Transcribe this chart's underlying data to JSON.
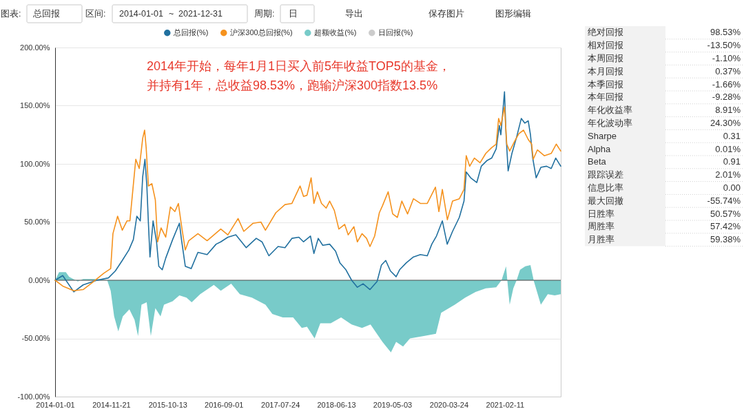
{
  "chart_data": [
    {
      "type": "other",
      "annotations": [
        "图表:",
        "总回报",
        "区间:",
        "2014-01-01",
        "~",
        "2021-12-31",
        "周期:",
        "日",
        "导出",
        "保存图片",
        "图形编辑"
      ]
    },
    {
      "type": "line",
      "legend": "top",
      "grid": "y",
      "xlim": [
        "2014-01-01",
        "2021-12-31"
      ],
      "xticks": [
        "2014-01-01",
        "2014-11-21",
        "2015-10-13",
        "2016-09-01",
        "2017-07-24",
        "2018-06-13",
        "2019-05-03",
        "2020-03-24",
        "2021-02-11"
      ],
      "ylim": [
        -100,
        200
      ],
      "yticks": [
        {
          "value": -100,
          "label": "-100.00%"
        },
        {
          "value": -50,
          "label": "-50.00%"
        },
        {
          "value": 0,
          "label": "0.00%"
        },
        {
          "value": 50,
          "label": "50.00%"
        },
        {
          "value": 100,
          "label": "100.00%"
        },
        {
          "value": 150,
          "label": "150.00%"
        },
        {
          "value": 200,
          "label": "200.00%"
        }
      ],
      "ref_lines": [
        {
          "axis": "y",
          "value": 0,
          "color": "#4d4d4d"
        }
      ],
      "annotations": [
        "2014年开始，每年1月1日买入前5年收益TOP5的基金，",
        "并持有1年，总收益98.53%，跑输沪深300指数13.5%"
      ],
      "series": [
        {
          "name": "总回报(%)",
          "color": "#21709f",
          "x": [
            "2014-01-01",
            "2014-02-14",
            "2014-04-19",
            "2014-06-12",
            "2014-08-30",
            "2014-11-05",
            "2014-12-15",
            "2015-01-24",
            "2015-03-03",
            "2015-03-29",
            "2015-04-18",
            "2015-05-08",
            "2015-05-22",
            "2015-06-04",
            "2015-06-15",
            "2015-06-24",
            "2015-07-03",
            "2015-07-21",
            "2015-08-10",
            "2015-08-23",
            "2015-09-12",
            "2015-10-02",
            "2015-11-11",
            "2015-12-20",
            "2016-01-01",
            "2016-01-23",
            "2016-02-26",
            "2016-04-05",
            "2016-05-28",
            "2016-07-19",
            "2016-08-15",
            "2016-09-25",
            "2016-11-10",
            "2016-12-13",
            "2017-01-09",
            "2017-03-08",
            "2017-04-10",
            "2017-05-20",
            "2017-07-12",
            "2017-08-21",
            "2017-09-30",
            "2017-11-09",
            "2017-12-06",
            "2018-01-15",
            "2018-02-04",
            "2018-03-01",
            "2018-03-27",
            "2018-05-06",
            "2018-06-09",
            "2018-07-04",
            "2018-08-08",
            "2018-09-10",
            "2018-10-13",
            "2018-11-15",
            "2018-12-25",
            "2019-02-04",
            "2019-03-01",
            "2019-03-26",
            "2019-04-22",
            "2019-05-25",
            "2019-06-14",
            "2019-07-23",
            "2019-09-02",
            "2019-10-12",
            "2019-11-21",
            "2019-12-17",
            "2020-01-13",
            "2020-02-16",
            "2020-03-15",
            "2020-04-15",
            "2020-05-24",
            "2020-06-20",
            "2020-07-03",
            "2020-07-29",
            "2020-09-02",
            "2020-09-28",
            "2020-11-01",
            "2020-11-27",
            "2020-12-23",
            "2021-01-10",
            "2021-01-19",
            "2021-02-09",
            "2021-02-18",
            "2021-03-02",
            "2021-03-24",
            "2021-04-20",
            "2021-05-17",
            "2021-06-06",
            "2021-06-26",
            "2021-07-09",
            "2021-07-22",
            "2021-08-11",
            "2021-09-07",
            "2021-10-10",
            "2021-11-06",
            "2021-12-02",
            "2021-12-31"
          ],
          "values": [
            0,
            4,
            -10,
            -4,
            0,
            2,
            8,
            17,
            26,
            35,
            55,
            51,
            89,
            104,
            81,
            49,
            20,
            51,
            33,
            12,
            9,
            19,
            35,
            49,
            35,
            12,
            10,
            24,
            22,
            31,
            33,
            37,
            39,
            33,
            28,
            36,
            33,
            21,
            29,
            28,
            36,
            37,
            33,
            38,
            23,
            36,
            30,
            31,
            25,
            15,
            9,
            0,
            -6,
            -3,
            -8,
            -1,
            13,
            17,
            8,
            3,
            9,
            15,
            20,
            22,
            21,
            31,
            38,
            51,
            31,
            42,
            54,
            68,
            93,
            88,
            84,
            98,
            103,
            105,
            113,
            133,
            125,
            162,
            125,
            94,
            109,
            123,
            139,
            135,
            137,
            125,
            105,
            88,
            97,
            98,
            96,
            105,
            98
          ]
        },
        {
          "name": "沪深300总回报(%)",
          "color": "#f5921e",
          "x": [
            "2014-01-01",
            "2014-02-14",
            "2014-04-19",
            "2014-06-12",
            "2014-08-04",
            "2014-10-09",
            "2014-11-18",
            "2014-12-01",
            "2014-12-28",
            "2015-01-24",
            "2015-02-20",
            "2015-03-09",
            "2015-04-12",
            "2015-05-02",
            "2015-05-22",
            "2015-06-02",
            "2015-06-11",
            "2015-06-24",
            "2015-07-14",
            "2015-08-03",
            "2015-08-16",
            "2015-09-05",
            "2015-10-02",
            "2015-10-29",
            "2015-11-24",
            "2015-12-14",
            "2016-01-03",
            "2016-01-23",
            "2016-02-12",
            "2016-04-05",
            "2016-05-28",
            "2016-08-15",
            "2016-09-25",
            "2016-11-23",
            "2016-12-26",
            "2017-02-18",
            "2017-04-04",
            "2017-04-30",
            "2017-06-29",
            "2017-08-21",
            "2017-09-30",
            "2017-11-16",
            "2017-12-06",
            "2017-12-26",
            "2018-01-19",
            "2018-02-04",
            "2018-02-24",
            "2018-03-20",
            "2018-04-16",
            "2018-05-06",
            "2018-06-02",
            "2018-06-28",
            "2018-08-01",
            "2018-08-21",
            "2018-09-23",
            "2018-10-13",
            "2018-11-09",
            "2018-12-05",
            "2018-12-25",
            "2019-01-21",
            "2019-02-17",
            "2019-03-07",
            "2019-04-09",
            "2019-05-05",
            "2019-06-01",
            "2019-06-27",
            "2019-07-30",
            "2019-09-02",
            "2019-10-12",
            "2019-11-21",
            "2020-01-07",
            "2020-01-27",
            "2020-02-16",
            "2020-03-16",
            "2020-04-15",
            "2020-05-24",
            "2020-06-20",
            "2020-07-03",
            "2020-07-23",
            "2020-08-19",
            "2020-09-21",
            "2020-10-24",
            "2020-11-27",
            "2020-12-23",
            "2021-01-06",
            "2021-01-19",
            "2021-02-09",
            "2021-02-22",
            "2021-03-11",
            "2021-04-07",
            "2021-05-03",
            "2021-05-30",
            "2021-06-26",
            "2021-07-16",
            "2021-07-25",
            "2021-08-18",
            "2021-09-27",
            "2021-11-06",
            "2021-12-05",
            "2021-12-31"
          ],
          "values": [
            0,
            -5,
            -9,
            -8,
            -2,
            6,
            10,
            40,
            55,
            43,
            51,
            51,
            104,
            96,
            122,
            129,
            114,
            81,
            83,
            69,
            33,
            45,
            37,
            63,
            59,
            66,
            45,
            26,
            34,
            40,
            34,
            44,
            39,
            53,
            42,
            49,
            50,
            43,
            58,
            65,
            66,
            81,
            72,
            73,
            88,
            66,
            76,
            66,
            62,
            68,
            60,
            44,
            48,
            39,
            46,
            33,
            40,
            36,
            29,
            38,
            58,
            64,
            76,
            57,
            54,
            68,
            57,
            70,
            66,
            66,
            80,
            59,
            78,
            52,
            68,
            70,
            78,
            107,
            98,
            105,
            101,
            109,
            114,
            117,
            139,
            133,
            149,
            117,
            111,
            119,
            126,
            129,
            121,
            117,
            104,
            112,
            107,
            109,
            117,
            111
          ]
        },
        {
          "name": "超额收益(%)",
          "type": "area",
          "color": "#78cbc9",
          "x": [
            "2014-01-01",
            "2014-01-24",
            "2014-03-04",
            "2014-03-23",
            "2014-05-12",
            "2014-06-12",
            "2014-08-30",
            "2014-10-29",
            "2014-11-18",
            "2014-12-08",
            "2015-01-01",
            "2015-01-27",
            "2015-03-06",
            "2015-04-05",
            "2015-04-25",
            "2015-05-15",
            "2015-06-14",
            "2015-07-08",
            "2015-08-03",
            "2015-09-02",
            "2015-09-22",
            "2015-11-11",
            "2015-12-20",
            "2016-01-30",
            "2016-02-29",
            "2016-04-18",
            "2016-07-06",
            "2016-08-15",
            "2016-10-14",
            "2016-12-03",
            "2017-02-11",
            "2017-04-30",
            "2017-06-09",
            "2017-08-08",
            "2017-10-07",
            "2017-11-26",
            "2017-12-26",
            "2018-02-08",
            "2018-03-13",
            "2018-05-12",
            "2018-07-11",
            "2018-09-10",
            "2018-11-09",
            "2018-12-28",
            "2019-03-07",
            "2019-04-25",
            "2019-05-25",
            "2019-07-04",
            "2019-08-13",
            "2019-11-01",
            "2020-01-10",
            "2020-02-09",
            "2020-04-28",
            "2020-06-27",
            "2020-08-26",
            "2020-10-24",
            "2020-12-23",
            "2021-01-23",
            "2021-02-18",
            "2021-03-01",
            "2021-03-11",
            "2021-04-01",
            "2021-04-20",
            "2021-05-10",
            "2021-06-09",
            "2021-07-09",
            "2021-07-29",
            "2021-09-07",
            "2021-10-17",
            "2021-11-26",
            "2021-12-31"
          ],
          "values": [
            0,
            7,
            7,
            3,
            -1,
            1,
            1,
            0,
            -9,
            -31,
            -44,
            -31,
            -25,
            -34,
            -48,
            -21,
            -19,
            -48,
            -24,
            -31,
            -21,
            -18,
            -13,
            -15,
            -19,
            -12,
            -4,
            -9,
            -3,
            -12,
            -15,
            -21,
            -29,
            -32,
            -32,
            -41,
            -40,
            -50,
            -37,
            -37,
            -32,
            -38,
            -41,
            -38,
            -53,
            -62,
            -53,
            -57,
            -50,
            -48,
            -46,
            -28,
            -21,
            -15,
            -10,
            -7,
            -6,
            0,
            12,
            -6,
            -21,
            -7,
            0,
            9,
            12,
            13,
            -1,
            -21,
            -12,
            -13,
            -12
          ]
        },
        {
          "name": "日回报(%)",
          "color": "#cccccc"
        }
      ]
    },
    {
      "type": "other",
      "categories": [
        "绝对回报",
        "相对回报",
        "本周回报",
        "本月回报",
        "本季回报",
        "本年回报",
        "年化收益率",
        "年化波动率",
        "Sharpe",
        "Alpha",
        "Beta",
        "跟踪误差",
        "信息比率",
        "最大回撤",
        "日胜率",
        "周胜率",
        "月胜率"
      ],
      "value_labels": [
        "98.53%",
        "-13.50%",
        "-1.10%",
        "0.37%",
        "-1.66%",
        "-9.28%",
        "8.91%",
        "24.30%",
        "0.31",
        "0.01%",
        "0.91",
        "2.01%",
        "0.00",
        "-55.74%",
        "50.57%",
        "57.42%",
        "59.38%"
      ]
    }
  ]
}
